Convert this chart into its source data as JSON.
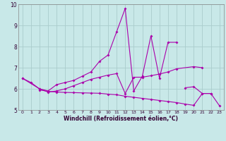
{
  "color": "#aa00aa",
  "bg_color": "#c8e8e8",
  "grid_color": "#aacccc",
  "xlabel": "Windchill (Refroidissement éolien,°C)",
  "ylim": [
    5,
    10
  ],
  "xlim": [
    -0.5,
    23.5
  ],
  "yticks": [
    5,
    6,
    7,
    8,
    9,
    10
  ],
  "xticks": [
    0,
    1,
    2,
    3,
    4,
    5,
    6,
    7,
    8,
    9,
    10,
    11,
    12,
    13,
    14,
    15,
    16,
    17,
    18,
    19,
    20,
    21,
    22,
    23
  ],
  "line1_x": [
    0,
    1,
    2,
    3,
    4,
    5,
    6,
    7,
    8,
    9,
    10,
    11,
    12,
    13,
    14,
    15,
    16,
    17,
    18
  ],
  "line1_y": [
    6.5,
    6.3,
    6.0,
    5.9,
    6.2,
    6.3,
    6.4,
    6.6,
    6.8,
    7.3,
    7.6,
    8.7,
    9.8,
    5.9,
    6.6,
    8.5,
    6.5,
    8.2,
    8.2
  ],
  "line2_x": [
    0,
    2,
    3,
    4,
    5,
    6,
    7,
    8,
    9,
    10,
    11,
    12,
    13,
    14,
    15,
    16,
    17,
    18,
    20,
    21
  ],
  "line2_y": [
    6.5,
    6.0,
    5.85,
    5.9,
    6.0,
    6.15,
    6.3,
    6.45,
    6.55,
    6.65,
    6.72,
    5.78,
    6.55,
    6.55,
    6.62,
    6.7,
    6.8,
    6.95,
    7.05,
    7.0
  ],
  "line3_x": [
    2,
    3,
    4,
    5,
    6,
    7,
    8,
    9,
    10,
    11,
    12,
    13,
    14,
    15,
    16,
    17,
    18,
    19,
    20,
    21,
    22,
    23
  ],
  "line3_y": [
    5.95,
    5.88,
    5.85,
    5.83,
    5.82,
    5.81,
    5.8,
    5.79,
    5.75,
    5.72,
    5.65,
    5.6,
    5.55,
    5.5,
    5.45,
    5.4,
    5.35,
    5.28,
    5.22,
    5.78,
    5.78,
    5.2
  ],
  "line4_x": [
    19,
    20,
    21,
    22
  ],
  "line4_y": [
    6.05,
    6.1,
    5.78,
    5.78
  ],
  "xlabel_fontsize": 5.5,
  "xlabel_color": "#330033",
  "tick_fontsize": 4.5,
  "ytick_fontsize": 5.5,
  "marker": "D",
  "markersize": 2.0,
  "linewidth": 0.8
}
